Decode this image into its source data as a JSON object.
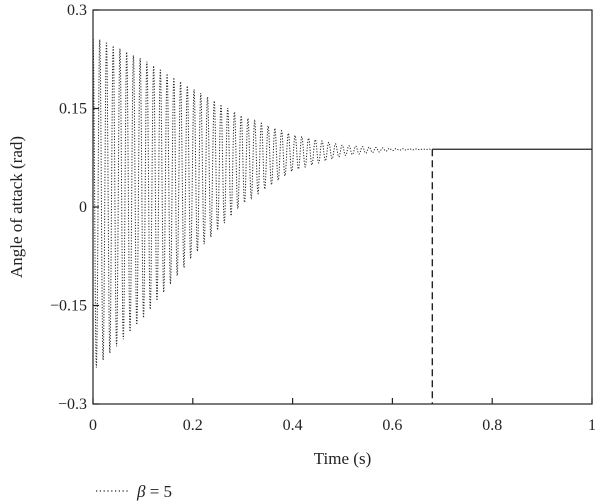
{
  "chart_data": {
    "type": "line",
    "title": "",
    "xlabel": "Time (s)",
    "ylabel": "Angle of attack (rad)",
    "xlim": [
      0,
      1
    ],
    "ylim": [
      -0.3,
      0.3
    ],
    "x_ticks": [
      0,
      0.2,
      0.4,
      0.6,
      0.8,
      1
    ],
    "x_tick_labels": [
      "0",
      "0.2",
      "0.4",
      "0.6",
      "0.8",
      "1"
    ],
    "y_ticks": [
      -0.3,
      -0.15,
      0,
      0.15,
      0.3
    ],
    "y_tick_labels": [
      "−0.3",
      "−0.15",
      "0",
      "0.15",
      "0.3"
    ],
    "grid": false,
    "series": [
      {
        "name": "β = 5",
        "style": "dotted",
        "color": "#222222",
        "envelope_upper": [
          [
            0.0,
            0.26
          ],
          [
            0.1,
            0.225
          ],
          [
            0.2,
            0.18
          ],
          [
            0.3,
            0.138
          ],
          [
            0.4,
            0.11
          ],
          [
            0.5,
            0.094
          ],
          [
            0.6,
            0.089
          ],
          [
            0.68,
            0.088
          ],
          [
            1.0,
            0.088
          ]
        ],
        "envelope_lower": [
          [
            0.0,
            -0.25
          ],
          [
            0.1,
            -0.17
          ],
          [
            0.2,
            -0.075
          ],
          [
            0.3,
            0.005
          ],
          [
            0.4,
            0.055
          ],
          [
            0.5,
            0.078
          ],
          [
            0.6,
            0.086
          ],
          [
            0.68,
            0.088
          ],
          [
            1.0,
            0.088
          ]
        ],
        "steady_value": 0.088
      }
    ],
    "marker_line": {
      "x": 0.68,
      "y_range": [
        -0.3,
        0.088
      ],
      "style": "dashed"
    },
    "legend": {
      "position": "bottom-left",
      "entries": [
        "β = 5"
      ],
      "symbol": "β",
      "text": " = 5"
    }
  }
}
